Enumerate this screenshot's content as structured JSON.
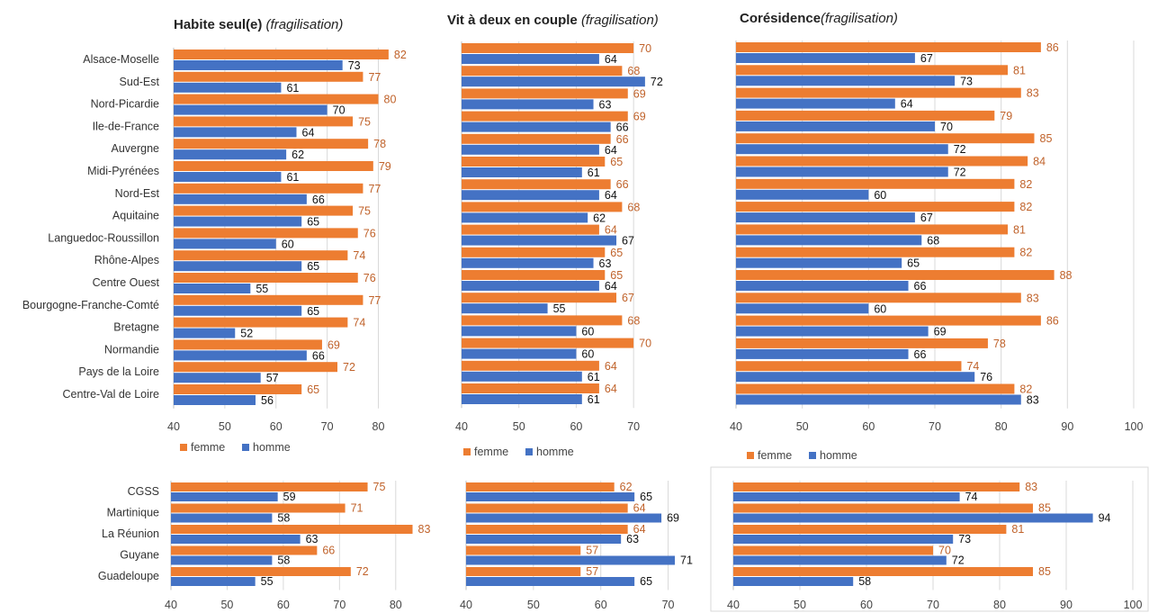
{
  "colors": {
    "femme": "#ed7d31",
    "homme": "#4472c4",
    "grid": "#d9d9d9",
    "axis": "#bfbfbf",
    "femme_label": "#c0622a",
    "homme_label": "#111111"
  },
  "legend": {
    "femme": "femme",
    "homme": "homme"
  },
  "titles": [
    {
      "bold": "Habite seul(e) ",
      "italic": "(fragilisation)"
    },
    {
      "bold": "Vit à deux en couple ",
      "italic": "(fragilisation)"
    },
    {
      "bold": "Corésidence",
      "italic": "(fragilisation)"
    }
  ],
  "chart_data": [
    {
      "type": "bar",
      "orientation": "horizontal",
      "title": "Habite seul(e) (fragilisation)",
      "categories": [
        "Alsace-Moselle",
        "Sud-Est",
        "Nord-Picardie",
        "Ile-de-France",
        "Auvergne",
        "Midi-Pyrénées",
        "Nord-Est",
        "Aquitaine",
        "Languedoc-Roussillon",
        "Rhône-Alpes",
        "Centre Ouest",
        "Bourgogne-Franche-Comté",
        "Bretagne",
        "Normandie",
        "Pays de la Loire",
        "Centre-Val de Loire"
      ],
      "series": [
        {
          "name": "femme",
          "values": [
            82,
            77,
            80,
            75,
            78,
            79,
            77,
            75,
            76,
            74,
            76,
            77,
            74,
            69,
            72,
            65
          ]
        },
        {
          "name": "homme",
          "values": [
            73,
            61,
            70,
            64,
            62,
            61,
            66,
            65,
            60,
            65,
            55,
            65,
            52,
            66,
            57,
            56
          ]
        }
      ],
      "xlim": [
        40,
        88
      ],
      "xticks": [
        40,
        50,
        60,
        70,
        80
      ],
      "grid": true,
      "legend": "bottom"
    },
    {
      "type": "bar",
      "orientation": "horizontal",
      "title": "Vit à deux en couple (fragilisation)",
      "categories": [
        "Alsace-Moselle",
        "Sud-Est",
        "Nord-Picardie",
        "Ile-de-France",
        "Auvergne",
        "Midi-Pyrénées",
        "Nord-Est",
        "Aquitaine",
        "Languedoc-Roussillon",
        "Rhône-Alpes",
        "Centre Ouest",
        "Bourgogne-Franche-Comté",
        "Bretagne",
        "Normandie",
        "Pays de la Loire",
        "Centre-Val de Loire"
      ],
      "series": [
        {
          "name": "femme",
          "values": [
            70,
            68,
            69,
            69,
            66,
            65,
            66,
            68,
            64,
            65,
            65,
            67,
            68,
            70,
            64,
            64
          ]
        },
        {
          "name": "homme",
          "values": [
            64,
            72,
            63,
            66,
            64,
            61,
            64,
            62,
            67,
            63,
            64,
            55,
            60,
            60,
            61,
            61
          ]
        }
      ],
      "xlim": [
        40,
        75
      ],
      "xticks": [
        40,
        50,
        60,
        70
      ],
      "grid": true,
      "legend": "bottom"
    },
    {
      "type": "bar",
      "orientation": "horizontal",
      "title": "Corésidence(fragilisation)",
      "categories": [
        "Alsace-Moselle",
        "Sud-Est",
        "Nord-Picardie",
        "Ile-de-France",
        "Auvergne",
        "Midi-Pyrénées",
        "Nord-Est",
        "Aquitaine",
        "Languedoc-Roussillon",
        "Rhône-Alpes",
        "Centre Ouest",
        "Bourgogne-Franche-Comté",
        "Bretagne",
        "Normandie",
        "Pays de la Loire",
        "Centre-Val de Loire"
      ],
      "series": [
        {
          "name": "femme",
          "values": [
            86,
            81,
            83,
            79,
            85,
            84,
            82,
            82,
            81,
            82,
            88,
            83,
            86,
            78,
            74,
            82
          ]
        },
        {
          "name": "homme",
          "values": [
            67,
            73,
            64,
            70,
            72,
            72,
            60,
            67,
            68,
            65,
            66,
            60,
            69,
            66,
            76,
            83
          ]
        }
      ],
      "xlim": [
        40,
        100
      ],
      "xticks": [
        40,
        50,
        60,
        70,
        80,
        90,
        100
      ],
      "grid": true,
      "legend": "bottom"
    },
    {
      "type": "bar",
      "orientation": "horizontal",
      "categories": [
        "CGSS",
        "Martinique",
        "La Réunion",
        "Guyane",
        "Guadeloupe"
      ],
      "series": [
        {
          "name": "femme",
          "values": [
            75,
            71,
            83,
            66,
            72
          ]
        },
        {
          "name": "homme",
          "values": [
            59,
            58,
            63,
            58,
            55
          ]
        }
      ],
      "xlim": [
        40,
        85
      ],
      "xticks": [
        40,
        50,
        60,
        70,
        80
      ],
      "grid": true
    },
    {
      "type": "bar",
      "orientation": "horizontal",
      "categories": [
        "CGSS",
        "Martinique",
        "La Réunion",
        "Guyane",
        "Guadeloupe"
      ],
      "series": [
        {
          "name": "femme",
          "values": [
            62,
            64,
            64,
            57,
            57
          ]
        },
        {
          "name": "homme",
          "values": [
            65,
            69,
            63,
            71,
            65
          ]
        }
      ],
      "xlim": [
        40,
        75
      ],
      "xticks": [
        40,
        50,
        60,
        70
      ],
      "grid": true
    },
    {
      "type": "bar",
      "orientation": "horizontal",
      "categories": [
        "CGSS",
        "Martinique",
        "La Réunion",
        "Guyane",
        "Guadeloupe"
      ],
      "series": [
        {
          "name": "femme",
          "values": [
            83,
            85,
            81,
            70,
            85
          ]
        },
        {
          "name": "homme",
          "values": [
            74,
            94,
            73,
            72,
            58
          ]
        }
      ],
      "xlim": [
        40,
        100
      ],
      "xticks": [
        40,
        50,
        60,
        70,
        80,
        90,
        100
      ],
      "grid": true
    }
  ]
}
